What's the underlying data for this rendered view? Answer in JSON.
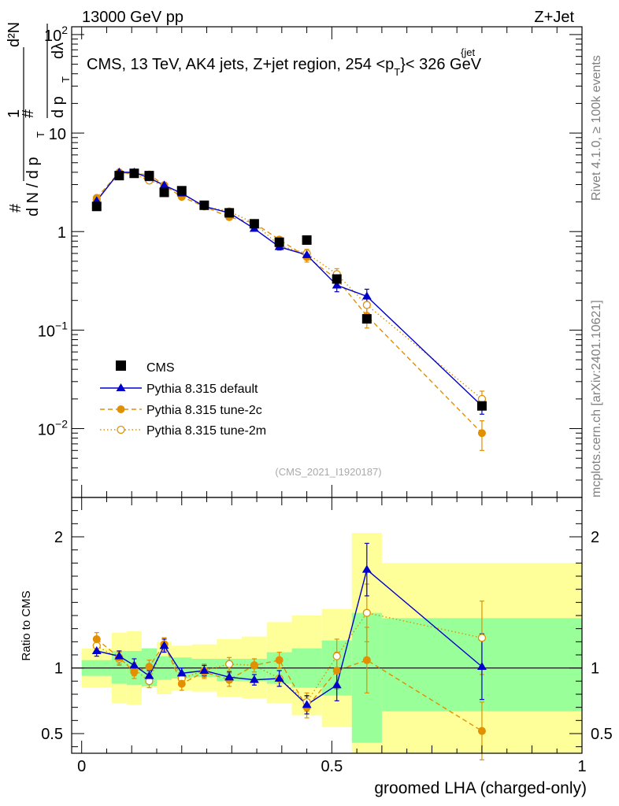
{
  "header": {
    "energy_label": "13000 GeV pp",
    "process_label": "Z+Jet"
  },
  "side_labels": {
    "rivet": "Rivet 4.1.0, ≥ 100k events",
    "mcplots": "mcplots.cern.ch [arXiv:2401.10621]"
  },
  "analysis_tag": "(CMS_2021_I1920187)",
  "colors": {
    "cms": "#000000",
    "default": "#0000cc",
    "tune2c": "#e09000",
    "tune2m": "#e09000",
    "band_green": "#99ff99",
    "band_yellow": "#ffff99"
  },
  "chart_data": [
    {
      "type": "scatter",
      "panel": "main",
      "title": "CMS, 13 TeV, AK4 jets, Z+jet region, 254 <p_T^{jet}< 326 GeV",
      "title_parts": {
        "prefix": "CMS, 13 TeV, AK4 jets, Z+jet region, 254 <p",
        "sub": "T",
        "sup": "{jet",
        "suffix": "}< 326 GeV"
      },
      "ylabel": "1/(dN/dp_T) · d²N/(dp_T dλ)",
      "ylabel_parts": {
        "hash": "#",
        "one": "1",
        "dN_dp": "d N / d p",
        "T": "T",
        "d2N": "d²N",
        "dpdl": "d p",
        "dl": "dλ"
      },
      "yscale": "log",
      "ylim": [
        0.002,
        120
      ],
      "xlim": [
        -0.02,
        1.0
      ],
      "y_ticks": [
        {
          "value": 0.01,
          "base": "10",
          "exp": "−2"
        },
        {
          "value": 0.1,
          "base": "10",
          "exp": "−1"
        },
        {
          "value": 1,
          "base": "1",
          "exp": ""
        },
        {
          "value": 10,
          "base": "10",
          "exp": ""
        },
        {
          "value": 100,
          "base": "10",
          "exp": "2"
        }
      ],
      "bins": [
        {
          "lo": 0.0,
          "hi": 0.06
        },
        {
          "lo": 0.06,
          "hi": 0.09
        },
        {
          "lo": 0.09,
          "hi": 0.12
        },
        {
          "lo": 0.12,
          "hi": 0.15
        },
        {
          "lo": 0.15,
          "hi": 0.18
        },
        {
          "lo": 0.18,
          "hi": 0.22
        },
        {
          "lo": 0.22,
          "hi": 0.27
        },
        {
          "lo": 0.27,
          "hi": 0.32
        },
        {
          "lo": 0.32,
          "hi": 0.37
        },
        {
          "lo": 0.37,
          "hi": 0.42
        },
        {
          "lo": 0.42,
          "hi": 0.48
        },
        {
          "lo": 0.48,
          "hi": 0.54
        },
        {
          "lo": 0.54,
          "hi": 0.6
        },
        {
          "lo": 0.6,
          "hi": 1.0
        }
      ],
      "x": [
        0.03,
        0.075,
        0.105,
        0.135,
        0.165,
        0.2,
        0.245,
        0.295,
        0.345,
        0.395,
        0.45,
        0.51,
        0.57,
        0.8
      ],
      "series": [
        {
          "name": "CMS",
          "key": "cms",
          "values": [
            1.8,
            3.7,
            3.9,
            3.7,
            2.5,
            2.6,
            1.85,
            1.55,
            1.2,
            0.78,
            0.82,
            0.33,
            0.13,
            0.017
          ]
        },
        {
          "name": "Pythia 8.315 default",
          "key": "default",
          "values": [
            2.05,
            4.0,
            4.0,
            3.5,
            2.95,
            2.45,
            1.8,
            1.55,
            1.07,
            0.7,
            0.58,
            0.285,
            0.22,
            0.017
          ],
          "err": [
            0.08,
            0.15,
            0.15,
            0.14,
            0.12,
            0.1,
            0.07,
            0.06,
            0.05,
            0.05,
            0.05,
            0.04,
            0.04,
            0.003
          ]
        },
        {
          "name": "Pythia 8.315 tune-2c",
          "key": "tune2c",
          "values": [
            2.2,
            4.0,
            3.85,
            3.8,
            2.95,
            2.25,
            1.8,
            1.4,
            1.22,
            0.83,
            0.55,
            0.33,
            0.14,
            0.009
          ],
          "err": [
            0.1,
            0.18,
            0.15,
            0.15,
            0.12,
            0.1,
            0.08,
            0.07,
            0.06,
            0.06,
            0.06,
            0.05,
            0.035,
            0.003
          ]
        },
        {
          "name": "Pythia 8.315 tune-2m",
          "key": "tune2m",
          "values": [
            2.1,
            3.95,
            3.85,
            3.3,
            2.95,
            2.4,
            1.8,
            1.6,
            1.22,
            0.72,
            0.6,
            0.37,
            0.18,
            0.02
          ],
          "err": [
            0.1,
            0.18,
            0.15,
            0.15,
            0.12,
            0.1,
            0.08,
            0.07,
            0.06,
            0.06,
            0.06,
            0.05,
            0.04,
            0.004
          ]
        }
      ]
    },
    {
      "type": "line",
      "panel": "ratio",
      "ylabel": "Ratio to CMS",
      "xlabel": "groomed LHA (charged-only)",
      "ylim": [
        0.35,
        2.3
      ],
      "xlim": [
        -0.02,
        1.0
      ],
      "x_ticks": [
        {
          "value": 0,
          "label": "0"
        },
        {
          "value": 0.5,
          "label": "0.5"
        },
        {
          "value": 1,
          "label": "1"
        }
      ],
      "y_ticks": [
        {
          "value": 0.5,
          "label": "0.5"
        },
        {
          "value": 1,
          "label": "1"
        },
        {
          "value": 2,
          "label": "2"
        }
      ],
      "band_inner_lo": [
        0.94,
        0.88,
        0.87,
        0.86,
        0.91,
        0.92,
        0.93,
        0.9,
        0.9,
        0.88,
        0.85,
        0.79,
        0.43,
        0.67
      ],
      "band_inner_hi": [
        1.06,
        1.13,
        1.13,
        1.15,
        1.09,
        1.08,
        1.07,
        1.07,
        1.07,
        1.12,
        1.15,
        1.21,
        1.42,
        1.38
      ],
      "band_outer_lo": [
        0.85,
        0.73,
        0.72,
        0.85,
        0.8,
        0.83,
        0.82,
        0.78,
        0.77,
        0.73,
        0.64,
        0.55,
        0.35,
        0.35
      ],
      "band_outer_hi": [
        1.15,
        1.27,
        1.28,
        1.15,
        1.2,
        1.17,
        1.18,
        1.22,
        1.24,
        1.35,
        1.4,
        1.45,
        2.03,
        1.8
      ],
      "series": [
        {
          "name": "Pythia 8.315 default",
          "key": "default",
          "values": [
            1.13,
            1.09,
            1.02,
            0.94,
            1.17,
            0.96,
            0.98,
            0.93,
            0.91,
            0.92,
            0.72,
            0.87,
            1.75,
            1.01
          ],
          "err": [
            0.04,
            0.04,
            0.05,
            0.04,
            0.05,
            0.04,
            0.04,
            0.04,
            0.04,
            0.06,
            0.07,
            0.12,
            0.2,
            0.25
          ]
        },
        {
          "name": "Pythia 8.315 tune-2c",
          "key": "tune2c",
          "values": [
            1.22,
            1.08,
            0.97,
            1.01,
            1.18,
            0.88,
            0.97,
            0.91,
            1.02,
            1.06,
            0.7,
            0.98,
            1.06,
            0.52
          ],
          "err": [
            0.05,
            0.05,
            0.05,
            0.05,
            0.05,
            0.05,
            0.05,
            0.05,
            0.05,
            0.06,
            0.08,
            0.14,
            0.25,
            0.22
          ]
        },
        {
          "name": "Pythia 8.315 tune-2m",
          "key": "tune2m",
          "values": [
            1.17,
            1.07,
            0.99,
            0.9,
            1.18,
            0.92,
            0.98,
            1.03,
            1.02,
            0.92,
            0.74,
            1.09,
            1.42,
            1.23
          ],
          "err": [
            0.05,
            0.05,
            0.05,
            0.05,
            0.05,
            0.05,
            0.05,
            0.05,
            0.05,
            0.06,
            0.07,
            0.13,
            0.22,
            0.28
          ]
        }
      ]
    }
  ]
}
